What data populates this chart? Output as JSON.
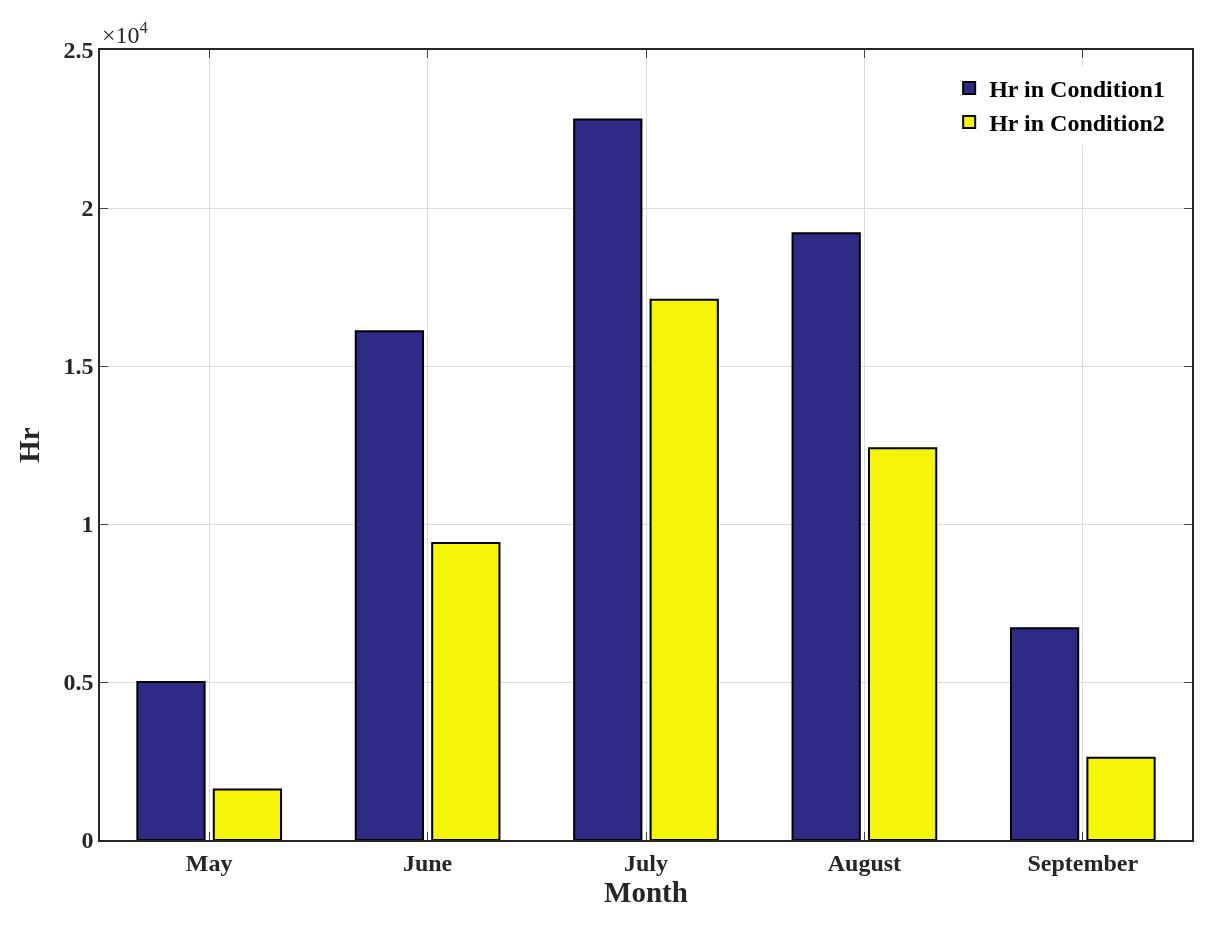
{
  "chart_data": {
    "type": "bar",
    "xlabel": "Month",
    "ylabel": "Hr",
    "categories": [
      "May",
      "June",
      "July",
      "August",
      "September"
    ],
    "series": [
      {
        "name": "Hr in Condition1",
        "color": "#2e2a86",
        "values": [
          0.5,
          1.61,
          2.28,
          1.92,
          0.67
        ]
      },
      {
        "name": "Hr in Condition2",
        "color": "#f5f50a",
        "values": [
          0.16,
          0.94,
          1.71,
          1.24,
          0.26
        ]
      }
    ],
    "ylim": [
      0,
      2.5
    ],
    "yticks": [
      0,
      0.5,
      1,
      1.5,
      2,
      2.5
    ],
    "annotations": [
      "×10$^{4}$"
    ],
    "grid": true,
    "legend": "top right"
  }
}
